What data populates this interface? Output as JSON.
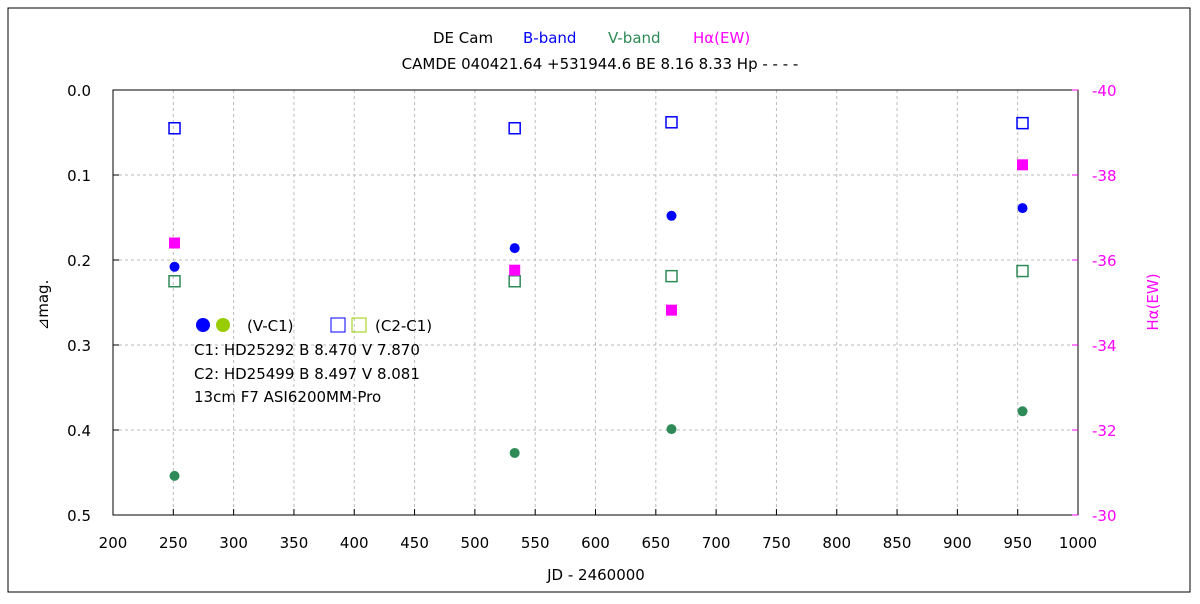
{
  "chart_data": {
    "type": "scatter",
    "title": {
      "star": "DE Cam",
      "b_label": "B-band",
      "v_label": "V-band",
      "ha_label": "Hα(EW)",
      "subtitle": "CAMDE 040421.64 +531944.6 BE 8.16 8.33 Hp - - - -"
    },
    "xlabel": "JD - 2460000",
    "ylabel": "⊿mag.",
    "y2label": "Hα(EW)",
    "xlim": [
      200,
      1000
    ],
    "ylim": [
      0.0,
      0.5
    ],
    "y2lim": [
      -40,
      -30
    ],
    "xticks": [
      200,
      250,
      300,
      350,
      400,
      450,
      500,
      550,
      600,
      650,
      700,
      750,
      800,
      850,
      900,
      950,
      1000
    ],
    "yticks": [
      "0.0",
      "0.1",
      "0.2",
      "0.3",
      "0.4",
      "0.5"
    ],
    "y2ticks": [
      "-40",
      "-38",
      "-36",
      "-34",
      "-32",
      "-30"
    ],
    "grid": true,
    "colors": {
      "b": "#0000ff",
      "v": "#2e8b57",
      "ha": "#ff00ff",
      "legend_v": "#99cc00"
    },
    "series": [
      {
        "name": "B (V-C1)",
        "marker": "filled-circle",
        "color": "#0000ff",
        "axis": "left",
        "x": [
          251,
          533,
          663,
          954
        ],
        "y": [
          0.208,
          0.186,
          0.148,
          0.139
        ]
      },
      {
        "name": "B (C2-C1)",
        "marker": "open-square",
        "color": "#0000ff",
        "axis": "left",
        "x": [
          251,
          533,
          663,
          954
        ],
        "y": [
          0.045,
          0.045,
          0.038,
          0.039
        ]
      },
      {
        "name": "V (V-C1)",
        "marker": "filled-circle",
        "color": "#2e8b57",
        "axis": "left",
        "x": [
          251,
          533,
          663,
          954
        ],
        "y": [
          0.454,
          0.427,
          0.399,
          0.378
        ]
      },
      {
        "name": "V (C2-C1)",
        "marker": "open-square",
        "color": "#2e8b57",
        "axis": "left",
        "x": [
          251,
          533,
          663,
          954
        ],
        "y": [
          0.225,
          0.225,
          0.219,
          0.213
        ]
      },
      {
        "name": "Hα(EW)",
        "marker": "filled-square",
        "color": "#ff00ff",
        "axis": "right",
        "x": [
          251,
          533,
          663,
          954
        ],
        "y": [
          -36.4,
          -35.76,
          -34.82,
          -38.24
        ]
      }
    ],
    "legend": {
      "placement": "center-left",
      "vc1": "(V-C1)",
      "c2c1": "(C2-C1)",
      "lines": [
        "C1: HD25292  B 8.470  V 7.870",
        "C2: HD25499  B 8.497  V 8.081",
        "13cm  F7  ASI6200MM-Pro"
      ]
    }
  }
}
